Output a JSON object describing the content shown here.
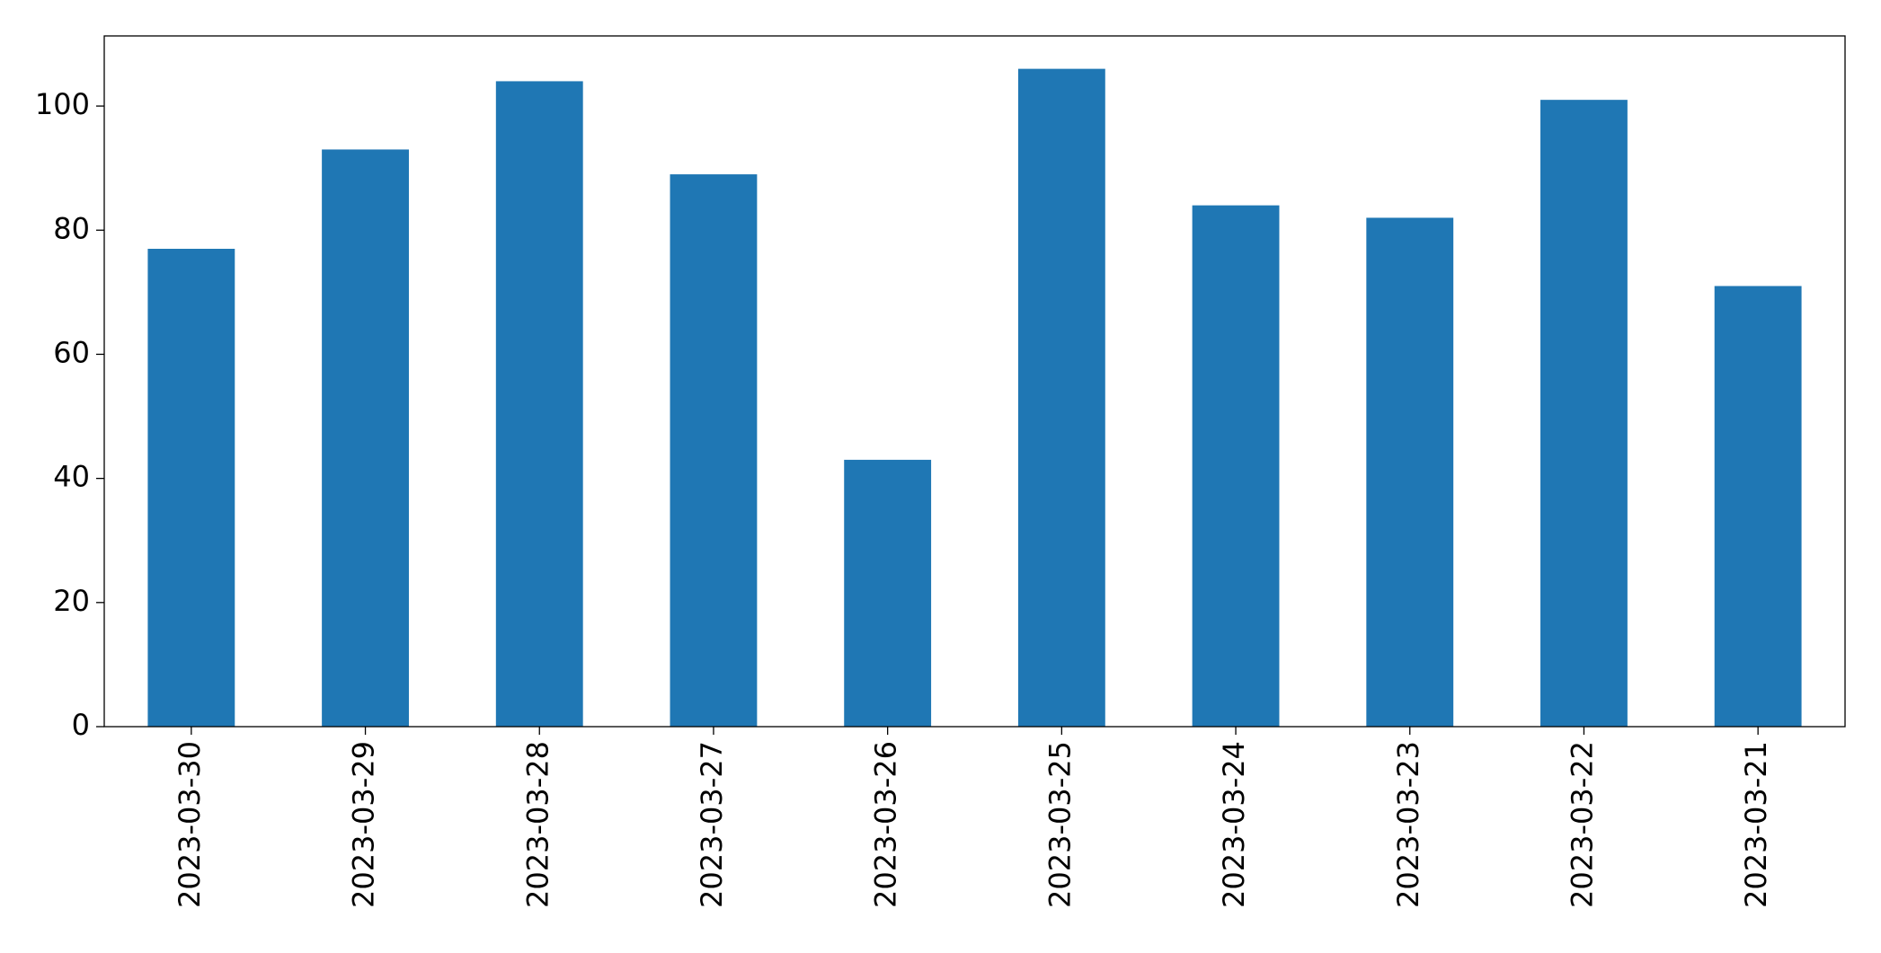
{
  "chart_data": {
    "type": "bar",
    "categories": [
      "2023-03-30",
      "2023-03-29",
      "2023-03-28",
      "2023-03-27",
      "2023-03-26",
      "2023-03-25",
      "2023-03-24",
      "2023-03-23",
      "2023-03-22",
      "2023-03-21"
    ],
    "values": [
      77,
      93,
      104,
      89,
      43,
      106,
      84,
      82,
      101,
      71
    ],
    "color": "#1f77b4",
    "ylim": [
      0,
      111.3
    ],
    "yticks": [
      0,
      20,
      40,
      60,
      80,
      100
    ],
    "grid": false
  }
}
